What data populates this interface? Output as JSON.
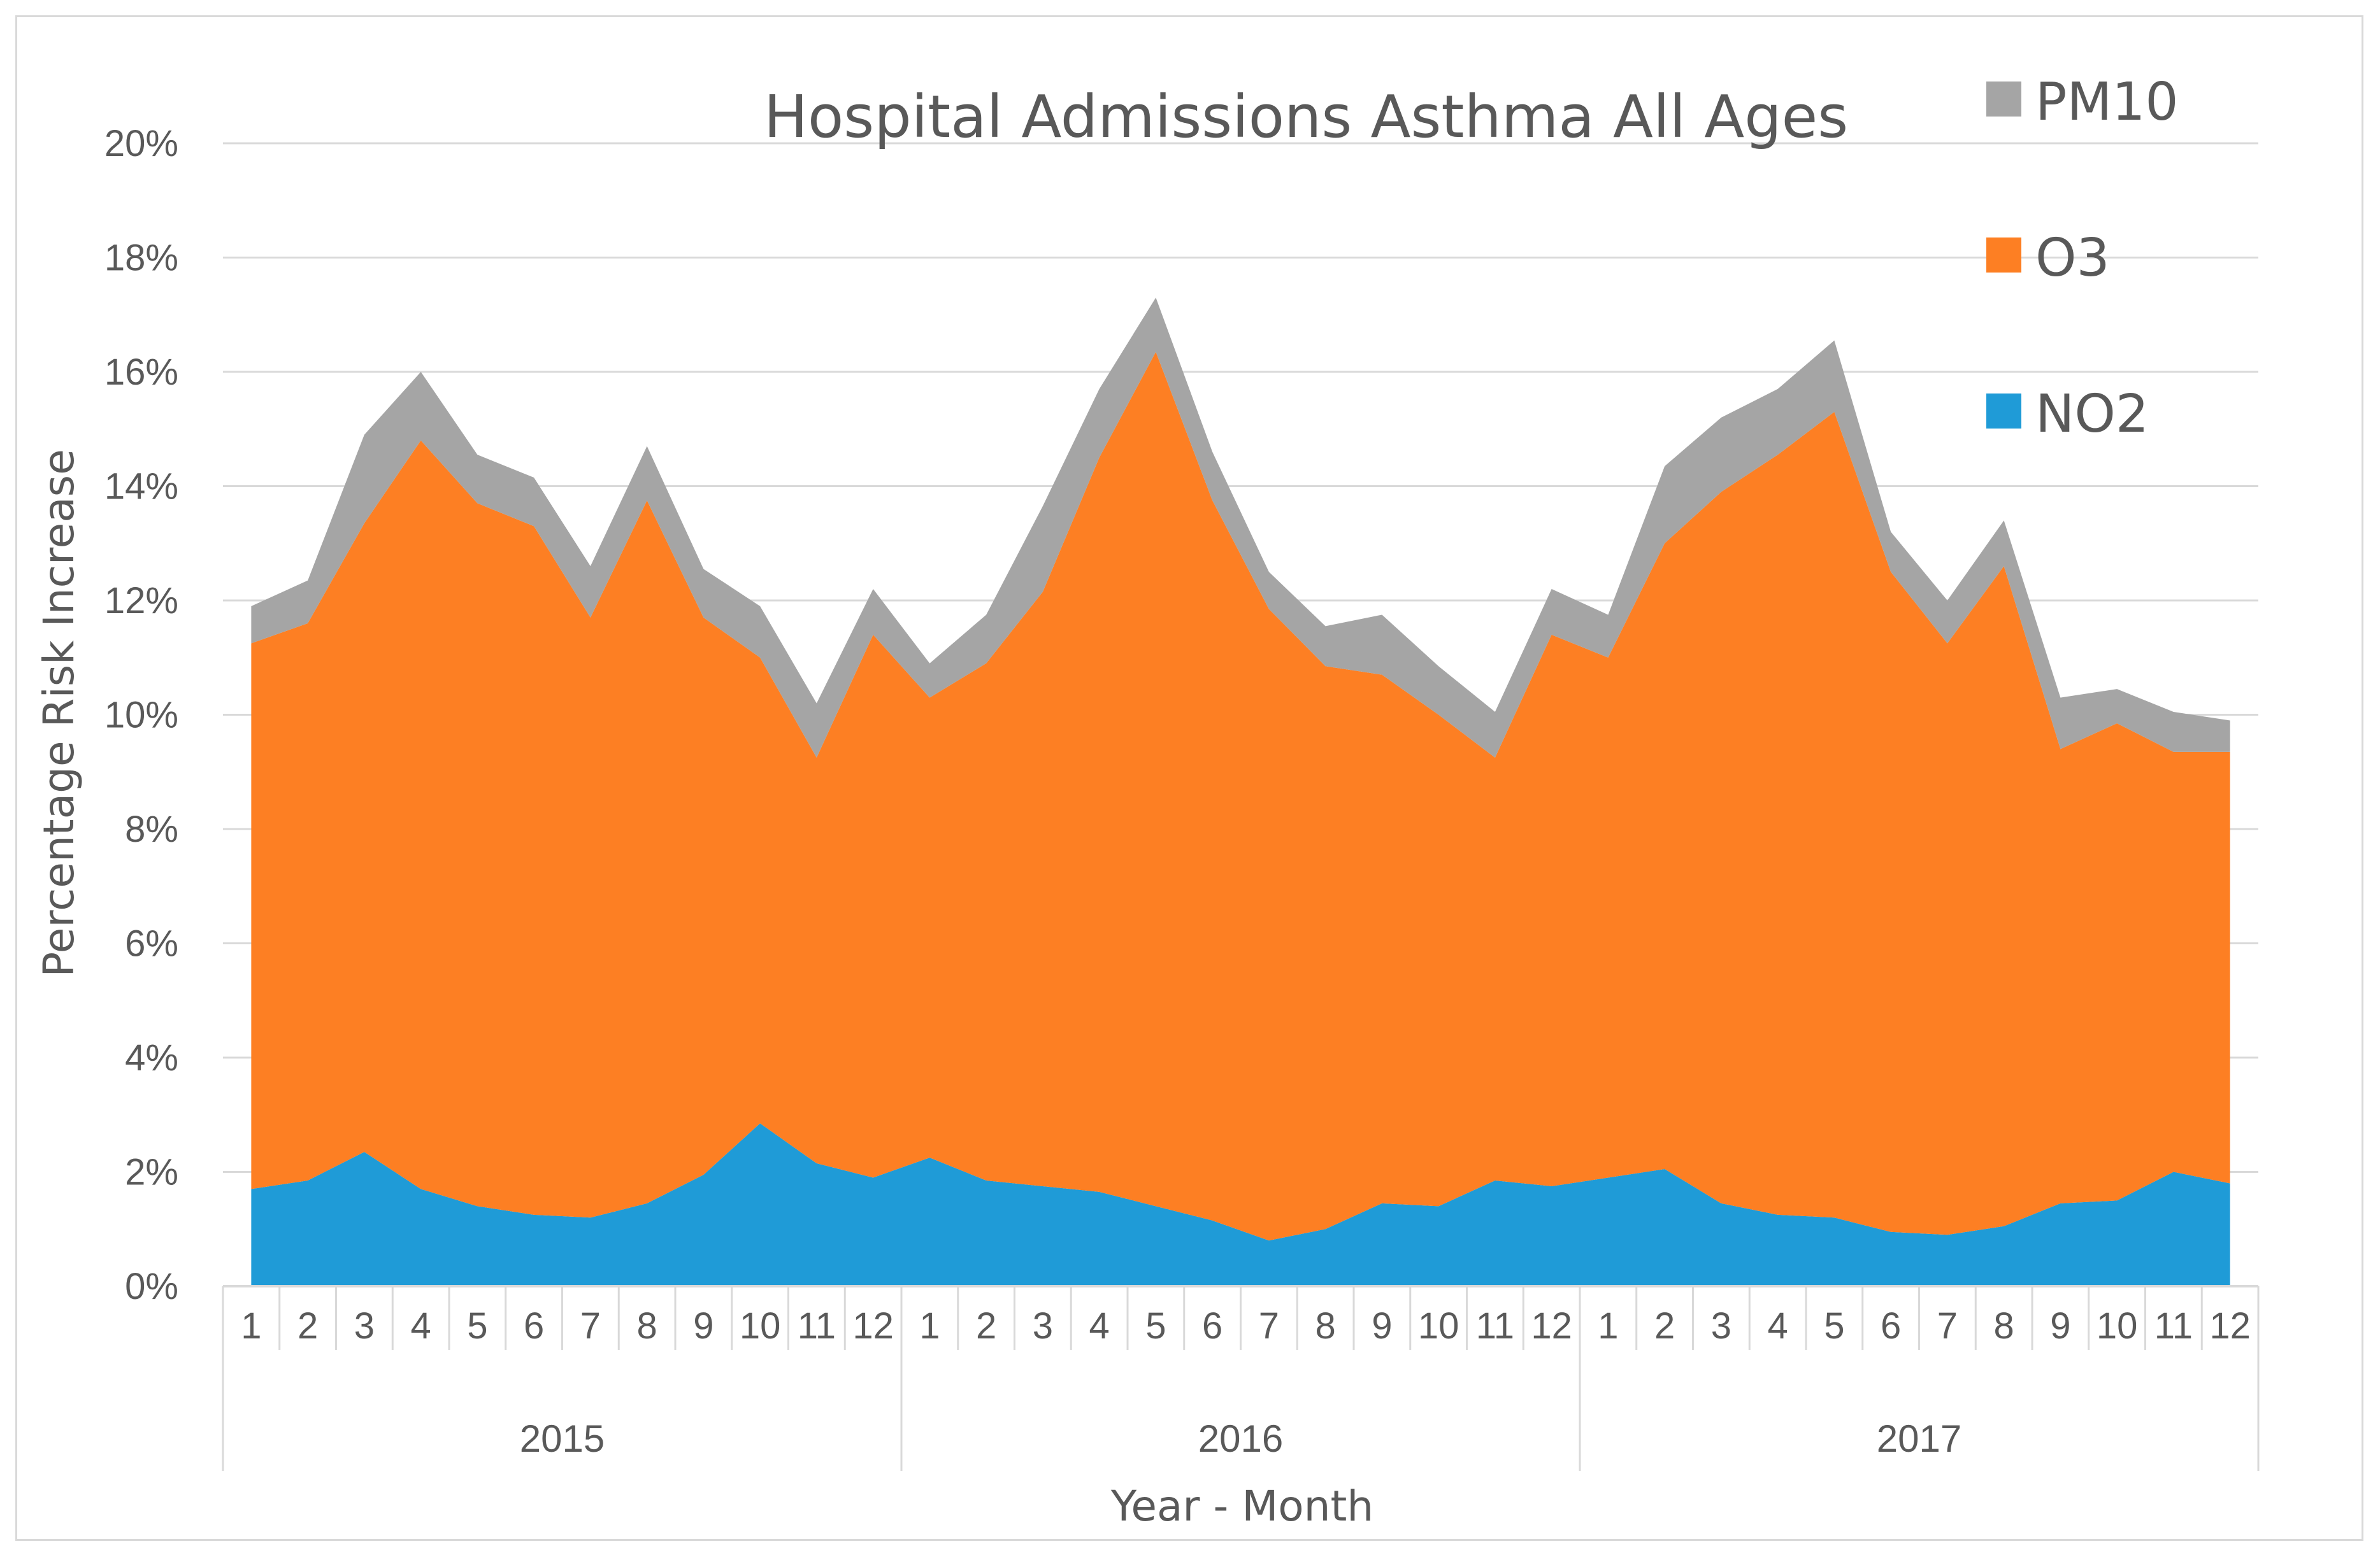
{
  "chart_data": {
    "type": "area",
    "stacked": true,
    "title": "Hospital Admissions Asthma All Ages",
    "xlabel": "Year - Month",
    "ylabel": "Percentage Risk Increase",
    "ylim": [
      0,
      20
    ],
    "y_ticks": [
      0,
      2,
      4,
      6,
      8,
      10,
      12,
      14,
      16,
      18,
      20
    ],
    "y_tick_labels": [
      "0%",
      "2%",
      "4%",
      "6%",
      "8%",
      "10%",
      "12%",
      "14%",
      "16%",
      "18%",
      "20%"
    ],
    "grid": true,
    "legend_position": "top-right",
    "years": [
      "2015",
      "2016",
      "2017"
    ],
    "months": [
      "1",
      "2",
      "3",
      "4",
      "5",
      "6",
      "7",
      "8",
      "9",
      "10",
      "11",
      "12"
    ],
    "series": [
      {
        "name": "NO2",
        "color": "#1f9bd7",
        "values": [
          1.7,
          1.85,
          2.35,
          1.7,
          1.4,
          1.25,
          1.2,
          1.45,
          1.95,
          2.85,
          2.15,
          1.9,
          2.25,
          1.85,
          1.75,
          1.65,
          1.4,
          1.15,
          0.8,
          1.0,
          1.45,
          1.4,
          1.85,
          1.75,
          1.9,
          2.05,
          1.45,
          1.25,
          1.2,
          0.95,
          0.9,
          1.05,
          1.45,
          1.5,
          2.0,
          1.8
        ]
      },
      {
        "name": "O3",
        "color": "#fd7f23",
        "values": [
          9.55,
          9.75,
          11.0,
          13.1,
          12.3,
          12.05,
          10.5,
          12.3,
          9.75,
          8.15,
          7.1,
          9.5,
          8.05,
          9.05,
          10.4,
          12.85,
          14.95,
          12.6,
          11.05,
          9.85,
          9.25,
          8.6,
          7.4,
          9.65,
          9.1,
          10.95,
          12.45,
          13.3,
          14.1,
          11.55,
          10.35,
          11.55,
          7.95,
          8.35,
          7.35,
          7.55
        ]
      },
      {
        "name": "PM10",
        "color": "#a5a5a5",
        "values": [
          0.65,
          0.75,
          1.55,
          1.2,
          0.85,
          0.85,
          0.9,
          0.95,
          0.85,
          0.9,
          0.95,
          0.8,
          0.6,
          0.85,
          1.5,
          1.2,
          0.95,
          0.85,
          0.65,
          0.7,
          1.05,
          0.85,
          0.8,
          0.8,
          0.75,
          1.35,
          1.3,
          1.15,
          1.25,
          0.7,
          0.75,
          0.8,
          0.9,
          0.6,
          0.7,
          0.55
        ]
      }
    ]
  }
}
